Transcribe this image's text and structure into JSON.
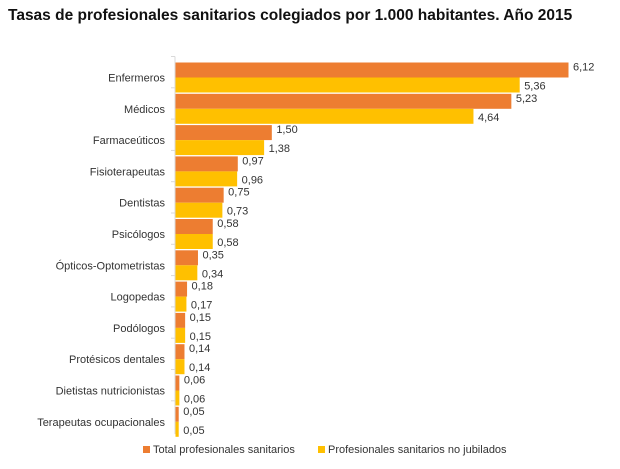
{
  "chart_data": {
    "type": "bar",
    "orientation": "horizontal",
    "title": "Tasas de profesionales sanitarios colegiados por 1.000 habitantes. Año 2015",
    "categories": [
      "Enfermeros",
      "Médicos",
      "Farmaceúticos",
      "Fisioterapeutas",
      "Dentistas",
      "Psicólogos",
      "Ópticos-Optometristas",
      "Logopedas",
      "Podólogos",
      "Protésicos dentales",
      "Dietistas nutricionistas",
      "Terapeutas ocupacionales"
    ],
    "series": [
      {
        "name": "Total profesionales sanitarios",
        "color": "#ED7D31",
        "values": [
          6.12,
          5.23,
          1.5,
          0.97,
          0.75,
          0.58,
          0.35,
          0.18,
          0.15,
          0.14,
          0.06,
          0.05
        ],
        "labels": [
          "6,12",
          "5,23",
          "1,50",
          "0,97",
          "0,75",
          "0,58",
          "0,35",
          "0,18",
          "0,15",
          "0,14",
          "0,06",
          "0,05"
        ]
      },
      {
        "name": "Profesionales sanitarios no jubilados",
        "color": "#FFC000",
        "values": [
          5.36,
          4.64,
          1.38,
          0.96,
          0.73,
          0.58,
          0.34,
          0.17,
          0.15,
          0.14,
          0.06,
          0.05
        ],
        "labels": [
          "5,36",
          "4,64",
          "1,38",
          "0,96",
          "0,73",
          "0,58",
          "0,34",
          "0,17",
          "0,15",
          "0,14",
          "0,06",
          "0,05"
        ]
      }
    ],
    "xlim": [
      0,
      6.5
    ],
    "grid": false,
    "legend_position": "bottom"
  }
}
